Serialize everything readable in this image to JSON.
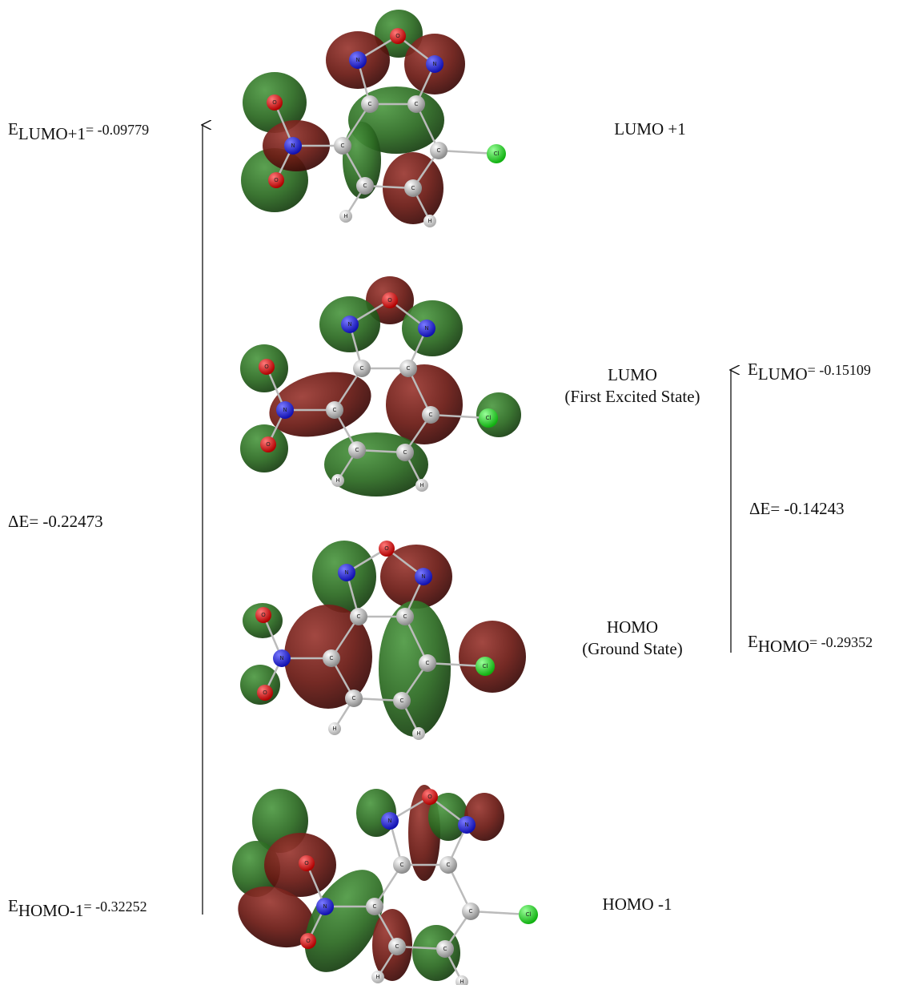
{
  "orbitals": [
    {
      "name": "LUMO +1",
      "atoms": [
        "O",
        "N",
        "N",
        "C",
        "C",
        "C",
        "C",
        "C",
        "C",
        "N",
        "O",
        "O",
        "Cl",
        "H",
        "H"
      ]
    },
    {
      "name": "LUMO",
      "state": "(First Excited State)",
      "atoms": [
        "O",
        "N",
        "N",
        "C",
        "C",
        "C",
        "C",
        "C",
        "C",
        "N",
        "O",
        "O",
        "Cl",
        "H",
        "H"
      ]
    },
    {
      "name": "HOMO",
      "state": "(Ground State)",
      "atoms": [
        "O",
        "N",
        "N",
        "C",
        "C",
        "C",
        "C",
        "C",
        "C",
        "N",
        "O",
        "O",
        "Cl",
        "H",
        "H"
      ]
    },
    {
      "name": "HOMO -1",
      "atoms": [
        "O",
        "N",
        "N",
        "C",
        "C",
        "C",
        "C",
        "C",
        "C",
        "N",
        "O",
        "O",
        "Cl",
        "H",
        "H"
      ]
    }
  ],
  "energies": [
    {
      "symbol": "E",
      "subscript": "LUMO+1",
      "value": "= -0.09779"
    },
    {
      "symbol": "E",
      "subscript": "LUMO",
      "value": "= -0.15109"
    },
    {
      "symbol": "E",
      "subscript": "HOMO",
      "value": "= -0.29352"
    },
    {
      "symbol": "E",
      "subscript": "HOMO-1",
      "value": "= -0.32252"
    }
  ],
  "gaps": [
    "ΔE= -0.22473",
    "ΔE= -0.14243"
  ]
}
